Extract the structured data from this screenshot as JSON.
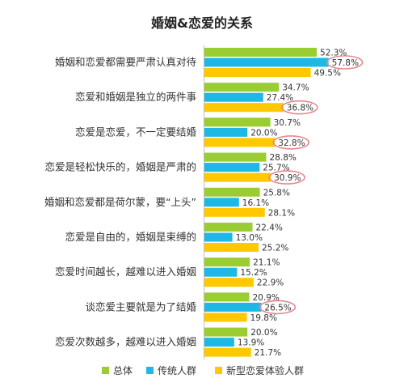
{
  "chart_data": {
    "type": "bar",
    "orientation": "horizontal",
    "title": "婚姻&恋爱的关系",
    "categories": [
      "婚姻和恋爱都需要严肃认真对待",
      "恋爱和婚姻是独立的两件事",
      "恋爱是恋爱，不一定要结婚",
      "恋爱是轻松快乐的，婚姻是严肃的",
      "婚姻和恋爱都是荷尔蒙，要“上头”",
      "恋爱是自由的，婚姻是束缚的",
      "恋爱时间越长，越难以进入婚姻",
      "谈恋爱主要就是为了结婚",
      "恋爱次数越多，越难以进入婚姻"
    ],
    "series": [
      {
        "name": "总体",
        "color": "#9ACD32",
        "values": [
          52.3,
          34.7,
          30.7,
          28.8,
          25.8,
          22.4,
          21.1,
          20.9,
          20.0
        ],
        "labels": [
          "52.3%",
          "34.7%",
          "30.7%",
          "28.8%",
          "25.8%",
          "22.4%",
          "21.1%",
          "20.9%",
          "20.0%"
        ]
      },
      {
        "name": "传统人群",
        "color": "#1FB8E6",
        "values": [
          57.8,
          27.4,
          20.0,
          25.7,
          16.1,
          13.0,
          15.2,
          26.5,
          13.9
        ],
        "labels": [
          "57.8%",
          "27.4%",
          "20.0%",
          "25.7%",
          "16.1%",
          "13.0%",
          "15.2%",
          "26.5%",
          "13.9%"
        ]
      },
      {
        "name": "新型恋爱体验人群",
        "color": "#FFC800",
        "values": [
          49.5,
          36.8,
          32.8,
          30.9,
          28.1,
          25.2,
          22.9,
          19.8,
          21.7
        ],
        "labels": [
          "49.5%",
          "36.8%",
          "32.8%",
          "30.9%",
          "28.1%",
          "25.2%",
          "22.9%",
          "19.8%",
          "21.7%"
        ]
      }
    ],
    "highlighted": [
      {
        "series": 1,
        "category": 0
      },
      {
        "series": 2,
        "category": 1
      },
      {
        "series": 2,
        "category": 2
      },
      {
        "series": 2,
        "category": 3
      },
      {
        "series": 1,
        "category": 7
      }
    ],
    "highlight_color": "#E8868E",
    "xlim": [
      0,
      60
    ],
    "grid": false,
    "legend": "bottom"
  }
}
